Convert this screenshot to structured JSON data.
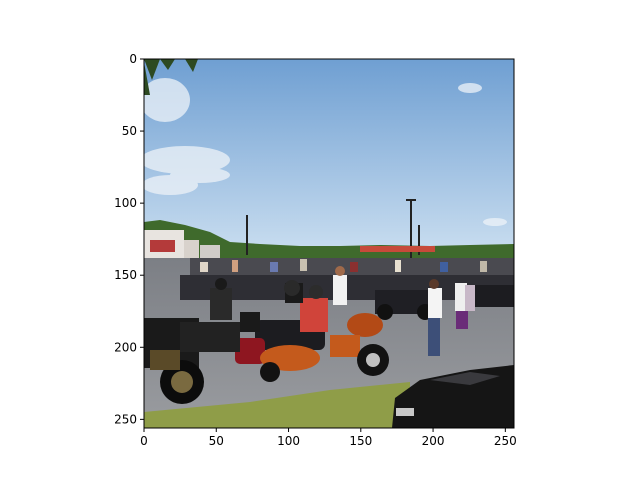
{
  "figure": {
    "image_description": "",
    "x_ticks": [
      0,
      50,
      100,
      150,
      200,
      250
    ],
    "y_ticks": [
      0,
      50,
      100,
      150,
      200,
      250
    ],
    "x_range": [
      0,
      256
    ],
    "y_range": [
      0,
      256
    ],
    "colors": {
      "sky_top": "#6f9fd2",
      "sky_bottom": "#bcd4ea",
      "tree_line": "#3f6a2c",
      "asphalt": "#8a8c90",
      "grass": "#8f9d48",
      "car": "#151515",
      "bike_orange": "#c45a1c",
      "bike_red": "#8e1620"
    }
  }
}
